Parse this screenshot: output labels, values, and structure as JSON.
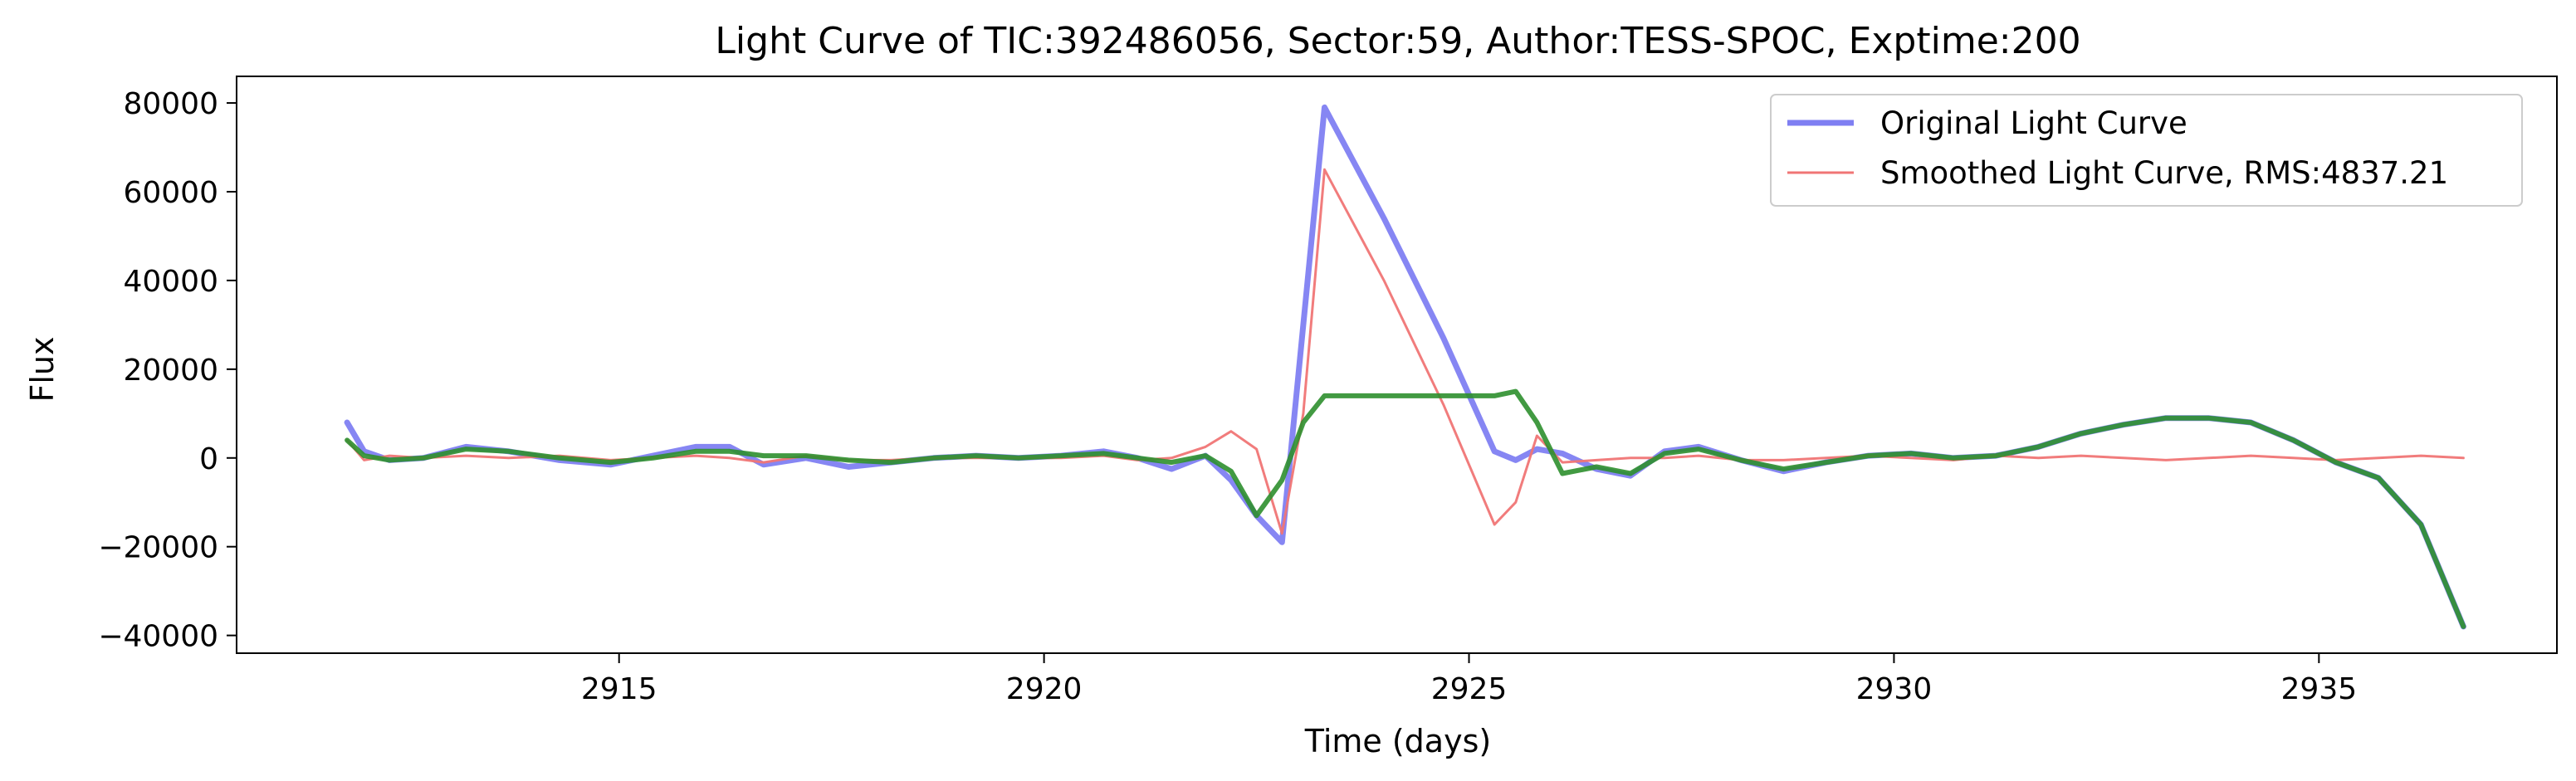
{
  "chart_data": {
    "type": "line",
    "title": "Light Curve of TIC:392486056, Sector:59, Author:TESS-SPOC, Exptime:200",
    "xlabel": "Time (days)",
    "ylabel": "Flux",
    "xlim": [
      2910.5,
      2937.8
    ],
    "ylim": [
      -44000,
      86000
    ],
    "xticks": [
      2915,
      2920,
      2925,
      2930,
      2935
    ],
    "yticks": [
      -40000,
      -20000,
      0,
      20000,
      40000,
      60000,
      80000
    ],
    "grid": false,
    "legend_position": "top-right",
    "series": [
      {
        "name": "Original Light Curve",
        "color": "#7f7ff2",
        "x": [
          2911.8,
          2912.0,
          2912.3,
          2912.7,
          2913.2,
          2913.7,
          2914.3,
          2914.9,
          2915.4,
          2915.9,
          2916.3,
          2916.7,
          2917.2,
          2917.7,
          2918.2,
          2918.7,
          2919.2,
          2919.7,
          2920.2,
          2920.7,
          2921.1,
          2921.5,
          2921.9,
          2922.2,
          2922.5,
          2922.8,
          2923.05,
          2923.3,
          2924.0,
          2924.7,
          2925.3,
          2925.55,
          2925.8,
          2926.1,
          2926.5,
          2926.9,
          2927.3,
          2927.7,
          2928.2,
          2928.7,
          2929.2,
          2929.7,
          2930.2,
          2930.7,
          2931.2,
          2931.7,
          2932.2,
          2932.7,
          2933.2,
          2933.7,
          2934.2,
          2934.7,
          2935.2,
          2935.7,
          2936.2,
          2936.7
        ],
        "values": [
          8000,
          1500,
          -500,
          0,
          2500,
          1500,
          -500,
          -1500,
          500,
          2500,
          2500,
          -1500,
          0,
          -2000,
          -1000,
          0,
          500,
          0,
          500,
          1500,
          0,
          -2500,
          500,
          -5000,
          -13000,
          -19000,
          30000,
          79000,
          54000,
          27000,
          1500,
          -500,
          2000,
          1000,
          -2500,
          -4000,
          1500,
          2500,
          -500,
          -3000,
          -1000,
          500,
          1000,
          0,
          500,
          2500,
          5500,
          7500,
          9000,
          9000,
          8000,
          4000,
          -1000,
          -4500,
          -15000,
          -38000
        ]
      },
      {
        "name": "Smoothed Light Curve, RMS:4837.21",
        "color": "#f07575",
        "x": [
          2911.8,
          2912.0,
          2912.3,
          2912.7,
          2913.2,
          2913.7,
          2914.3,
          2914.9,
          2915.4,
          2915.9,
          2916.3,
          2916.7,
          2917.2,
          2917.7,
          2918.2,
          2918.7,
          2919.2,
          2919.7,
          2920.2,
          2920.7,
          2921.1,
          2921.5,
          2921.9,
          2922.2,
          2922.5,
          2922.8,
          2923.05,
          2923.3,
          2924.0,
          2924.7,
          2925.3,
          2925.55,
          2925.8,
          2926.1,
          2926.5,
          2926.9,
          2927.3,
          2927.7,
          2928.2,
          2928.7,
          2929.2,
          2929.7,
          2930.2,
          2930.7,
          2931.2,
          2931.7,
          2932.2,
          2932.7,
          2933.2,
          2933.7,
          2934.2,
          2934.7,
          2935.2,
          2935.7,
          2936.2,
          2936.7
        ],
        "values": [
          4000,
          -500,
          500,
          0,
          500,
          0,
          500,
          -500,
          0,
          500,
          0,
          -1000,
          500,
          -500,
          -500,
          0,
          0,
          0,
          0,
          500,
          -500,
          0,
          2500,
          6000,
          2000,
          -17000,
          10000,
          65000,
          40000,
          12000,
          -15000,
          -10000,
          5000,
          -1000,
          -500,
          0,
          0,
          500,
          -500,
          -500,
          0,
          500,
          0,
          -500,
          500,
          0,
          500,
          0,
          -500,
          0,
          500,
          0,
          -500,
          0,
          500,
          0
        ]
      },
      {
        "name": "",
        "color": "#2e8f2e",
        "x": [
          2911.8,
          2912.0,
          2912.3,
          2912.7,
          2913.2,
          2913.7,
          2914.3,
          2914.9,
          2915.4,
          2915.9,
          2916.3,
          2916.7,
          2917.2,
          2917.7,
          2918.2,
          2918.7,
          2919.2,
          2919.7,
          2920.2,
          2920.7,
          2921.1,
          2921.5,
          2921.9,
          2922.2,
          2922.5,
          2922.8,
          2923.05,
          2923.3,
          2924.0,
          2924.7,
          2925.3,
          2925.55,
          2925.8,
          2926.1,
          2926.5,
          2926.9,
          2927.3,
          2927.7,
          2928.2,
          2928.7,
          2929.2,
          2929.7,
          2930.2,
          2930.7,
          2931.2,
          2931.7,
          2932.2,
          2932.7,
          2933.2,
          2933.7,
          2934.2,
          2934.7,
          2935.2,
          2935.7,
          2936.2,
          2936.7
        ],
        "values": [
          4000,
          500,
          -500,
          0,
          2000,
          1500,
          0,
          -1000,
          0,
          1500,
          1500,
          500,
          500,
          -500,
          -1000,
          0,
          500,
          0,
          500,
          1000,
          0,
          -1000,
          500,
          -3000,
          -13000,
          -5000,
          8000,
          14000,
          14000,
          14000,
          14000,
          15000,
          8000,
          -3500,
          -2000,
          -3500,
          1000,
          2000,
          -500,
          -2500,
          -1000,
          500,
          1000,
          0,
          500,
          2500,
          5500,
          7500,
          9000,
          9000,
          8000,
          4000,
          -1000,
          -4500,
          -15000,
          -38000
        ]
      }
    ]
  }
}
